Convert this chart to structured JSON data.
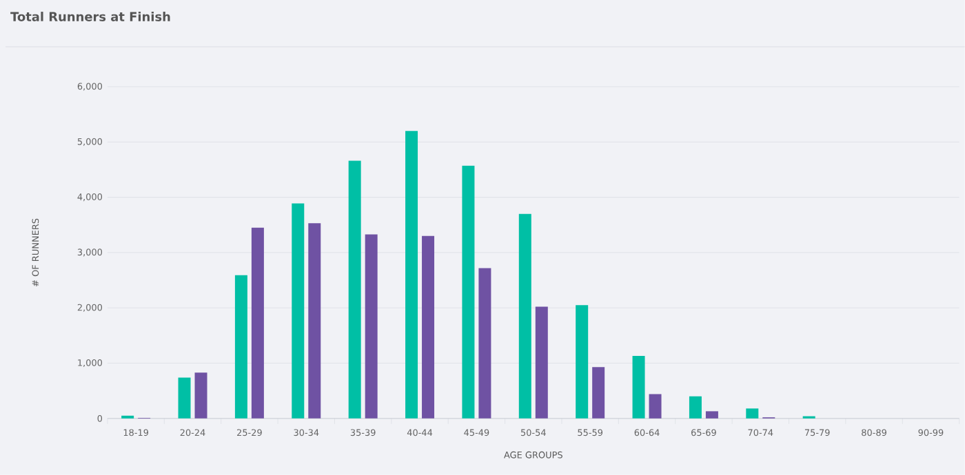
{
  "chart_data": {
    "type": "bar",
    "title": "Total Runners at Finish",
    "xlabel": "AGE GROUPS",
    "ylabel": "# OF RUNNERS",
    "categories": [
      "18-19",
      "20-24",
      "25-29",
      "30-34",
      "35-39",
      "40-44",
      "45-49",
      "50-54",
      "55-59",
      "60-64",
      "65-69",
      "70-74",
      "75-79",
      "80-89",
      "90-99"
    ],
    "series": [
      {
        "color": "#00bfa5",
        "values": [
          50,
          740,
          2590,
          3890,
          4660,
          5200,
          4570,
          3700,
          2050,
          1130,
          400,
          180,
          40,
          0,
          0
        ]
      },
      {
        "color": "#6f52a3",
        "values": [
          10,
          830,
          3450,
          3530,
          3330,
          3300,
          2720,
          2020,
          930,
          440,
          130,
          20,
          0,
          0,
          0
        ]
      }
    ],
    "ylim": [
      0,
      6000
    ],
    "yticks": [
      0,
      {
        "value": 1000,
        "label": "1,000"
      },
      {
        "value": 2000,
        "label": "2,000"
      },
      {
        "value": 3000,
        "label": "3,000"
      },
      {
        "value": 4000,
        "label": "4,000"
      },
      {
        "value": 5000,
        "label": "5,000"
      },
      {
        "value": 6000,
        "label": "6,000"
      }
    ],
    "grid": "y"
  }
}
